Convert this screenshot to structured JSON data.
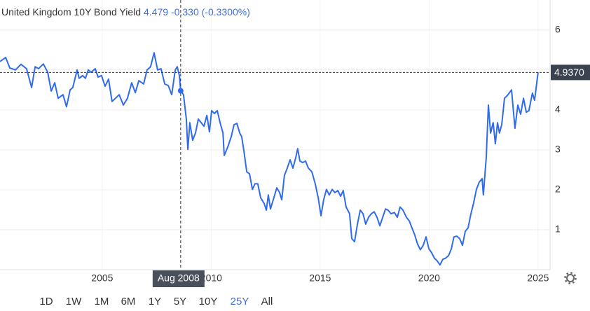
{
  "chart_data": {
    "type": "line",
    "title": "United Kingdom 10Y Bond Yield",
    "header_value": 4.479,
    "change": "-0.330 (-0.3300%)",
    "x": [
      2000.31,
      2000.57,
      2000.76,
      2001.02,
      2001.27,
      2001.53,
      2001.76,
      2001.92,
      2002.08,
      2002.3,
      2002.5,
      2002.66,
      2002.82,
      2002.98,
      2003.2,
      2003.36,
      2003.53,
      2003.65,
      2003.85,
      2003.94,
      2004.1,
      2004.23,
      2004.36,
      2004.49,
      2004.68,
      2004.81,
      2004.97,
      2005.13,
      2005.29,
      2005.45,
      2005.61,
      2005.78,
      2005.97,
      2006.16,
      2006.35,
      2006.52,
      2006.68,
      2006.9,
      2007.06,
      2007.22,
      2007.38,
      2007.54,
      2007.7,
      2007.87,
      2008.03,
      2008.19,
      2008.35,
      2008.44,
      2008.54,
      2008.6,
      2008.73,
      2008.86,
      2008.93,
      2009.02,
      2009.15,
      2009.28,
      2009.41,
      2009.54,
      2009.67,
      2009.8,
      2009.92,
      2010.02,
      2010.15,
      2010.28,
      2010.41,
      2010.54,
      2010.6,
      2010.76,
      2010.92,
      2011.05,
      2011.18,
      2011.31,
      2011.4,
      2011.5,
      2011.63,
      2011.76,
      2011.89,
      2012.01,
      2012.14,
      2012.27,
      2012.43,
      2012.53,
      2012.62,
      2012.72,
      2012.85,
      2013.01,
      2013.14,
      2013.24,
      2013.36,
      2013.49,
      2013.62,
      2013.75,
      2013.88,
      2013.97,
      2014.07,
      2014.2,
      2014.33,
      2014.46,
      2014.62,
      2014.78,
      2014.91,
      2015.04,
      2015.16,
      2015.29,
      2015.42,
      2015.55,
      2015.68,
      2015.81,
      2015.94,
      2016.06,
      2016.19,
      2016.35,
      2016.45,
      2016.58,
      2016.71,
      2016.84,
      2016.97,
      2017.09,
      2017.22,
      2017.35,
      2017.48,
      2017.61,
      2017.74,
      2017.87,
      2018.0,
      2018.12,
      2018.25,
      2018.41,
      2018.54,
      2018.67,
      2018.8,
      2018.96,
      2019.09,
      2019.21,
      2019.34,
      2019.47,
      2019.6,
      2019.73,
      2019.86,
      2019.99,
      2020.11,
      2020.24,
      2020.37,
      2020.5,
      2020.63,
      2020.76,
      2020.89,
      2021.02,
      2021.14,
      2021.27,
      2021.4,
      2021.53,
      2021.66,
      2021.79,
      2021.92,
      2022.04,
      2022.17,
      2022.3,
      2022.43,
      2022.49,
      2022.62,
      2022.72,
      2022.82,
      2022.94,
      2023.04,
      2023.14,
      2023.23,
      2023.33,
      2023.46,
      2023.62,
      2023.78,
      2023.94,
      2024.07,
      2024.2,
      2024.33,
      2024.46,
      2024.58,
      2024.74,
      2024.84,
      2025.0
    ],
    "series": [
      {
        "name": "United Kingdom 10Y Bond Yield",
        "color": "#2f6bec",
        "values": [
          5.21,
          5.31,
          5.05,
          5.0,
          5.14,
          5.03,
          4.56,
          5.08,
          5.03,
          5.15,
          4.94,
          4.47,
          4.68,
          4.29,
          4.38,
          4.08,
          4.5,
          4.56,
          5.0,
          4.79,
          4.86,
          4.79,
          5.0,
          4.94,
          5.03,
          4.82,
          4.86,
          4.59,
          4.77,
          4.21,
          4.29,
          4.38,
          4.12,
          4.29,
          4.68,
          4.43,
          4.73,
          4.65,
          5.0,
          5.08,
          5.43,
          5.0,
          5.03,
          4.65,
          4.61,
          4.38,
          5.0,
          5.08,
          4.86,
          4.48,
          4.38,
          3.77,
          3.01,
          3.68,
          3.24,
          3.42,
          3.77,
          3.68,
          3.59,
          3.86,
          3.45,
          3.98,
          3.91,
          3.98,
          3.68,
          3.42,
          2.86,
          3.07,
          3.33,
          3.63,
          3.66,
          3.42,
          3.33,
          2.98,
          2.45,
          2.4,
          2.01,
          2.15,
          2.15,
          1.8,
          1.66,
          1.49,
          1.87,
          1.52,
          1.75,
          2.05,
          1.93,
          1.75,
          2.36,
          2.54,
          2.75,
          2.54,
          2.8,
          3.03,
          2.72,
          2.68,
          2.72,
          2.54,
          2.45,
          2.14,
          1.8,
          1.35,
          1.75,
          2.01,
          1.87,
          2.01,
          1.93,
          1.98,
          1.84,
          1.98,
          1.57,
          1.4,
          0.78,
          0.7,
          1.14,
          1.49,
          1.4,
          1.14,
          1.31,
          1.4,
          1.45,
          1.31,
          1.1,
          1.31,
          1.52,
          1.49,
          1.4,
          1.43,
          1.31,
          1.57,
          1.49,
          1.31,
          1.22,
          1.05,
          0.87,
          0.64,
          0.5,
          0.61,
          0.82,
          0.52,
          0.43,
          0.29,
          0.22,
          0.12,
          0.26,
          0.29,
          0.35,
          0.52,
          0.82,
          0.84,
          0.78,
          0.61,
          0.96,
          1.05,
          1.4,
          1.66,
          2.01,
          2.19,
          2.28,
          1.87,
          2.8,
          4.12,
          3.42,
          3.68,
          3.15,
          3.68,
          3.42,
          3.63,
          4.29,
          4.38,
          4.5,
          3.54,
          4.12,
          3.89,
          4.29,
          3.94,
          3.98,
          4.42,
          4.24,
          4.937
        ]
      }
    ],
    "xlim": [
      2000.31,
      2025.55
    ],
    "xticks": [
      2005,
      2010,
      2015,
      2020,
      2025
    ],
    "ylim": [
      0,
      6.75
    ],
    "yticks": [
      1,
      2,
      3,
      4,
      5,
      6
    ],
    "grid": true,
    "crosshair": {
      "x": 2008.6,
      "label": "Aug 2008"
    },
    "last_value": {
      "value": 4.937,
      "label": "4.9370"
    },
    "ranges": [
      "1D",
      "1W",
      "1M",
      "6M",
      "1Y",
      "5Y",
      "10Y",
      "25Y",
      "All"
    ],
    "active_range": 7
  }
}
